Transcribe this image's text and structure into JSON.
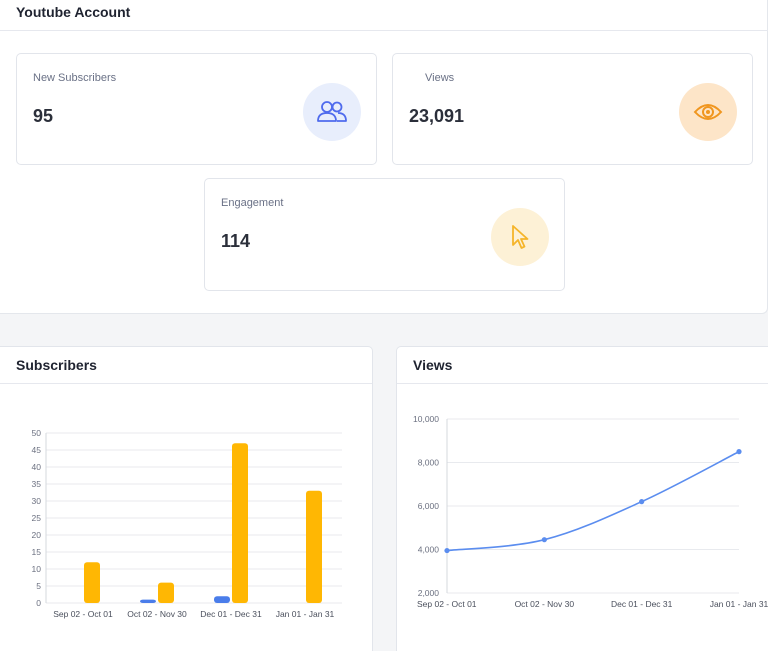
{
  "account": {
    "title": "Youtube Account",
    "cards": {
      "subscribers": {
        "label": "New Subscribers",
        "value": "95",
        "icon": "users-icon",
        "icon_color": "#4f6bed",
        "icon_bg": "#e8eefc"
      },
      "views": {
        "label": "Views",
        "value": "23,091",
        "icon": "eye-icon",
        "icon_color": "#f0961f",
        "icon_bg": "#fde5c8"
      },
      "engagement": {
        "label": "Engagement",
        "value": "114",
        "icon": "cursor-icon",
        "icon_color": "#f5b52a",
        "icon_bg": "#fdf1d6"
      }
    }
  },
  "subscribers_chart": {
    "title": "Subscribers",
    "chart_data": {
      "type": "bar",
      "categories": [
        "Sep 02 - Oct 01",
        "Oct 02 - Nov 30",
        "Dec 01 - Dec 31",
        "Jan 01 - Jan 31"
      ],
      "series": [
        {
          "values": [
            0,
            1,
            2,
            0
          ],
          "color": "#4a7dea"
        },
        {
          "values": [
            12,
            6,
            47,
            33
          ],
          "color": "#ffb703"
        }
      ],
      "yticks": [
        "0",
        "5",
        "10",
        "15",
        "20",
        "25",
        "30",
        "35",
        "40",
        "45",
        "50"
      ],
      "ylim": [
        0,
        50
      ],
      "grid": true
    }
  },
  "views_chart": {
    "title": "Views",
    "chart_data": {
      "type": "line",
      "categories": [
        "Sep 02 - Oct 01",
        "Oct 02 - Nov 30",
        "Dec 01 - Dec 31",
        "Jan 01 - Jan 31"
      ],
      "series": [
        {
          "values": [
            3950,
            4450,
            6200,
            8500
          ],
          "color": "#5b8def"
        }
      ],
      "yticks": [
        "2,000",
        "4,000",
        "6,000",
        "8,000",
        "10,000"
      ],
      "ylim": [
        2000,
        10000
      ],
      "grid": true
    }
  }
}
